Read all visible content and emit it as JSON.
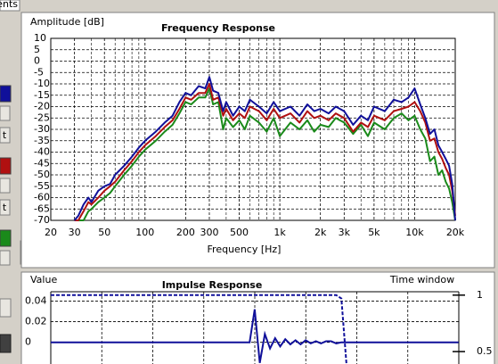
{
  "ui": {
    "tab": "ents",
    "buttons": [
      "t",
      "t",
      "t"
    ]
  },
  "chart_data": [
    {
      "type": "line",
      "title": "Frequency Response",
      "y_label": "Amplitude [dB]",
      "x_label": "Frequency [Hz]",
      "log_x": true,
      "grid": true,
      "xlim": [
        20,
        20000
      ],
      "ylim": [
        -70,
        10
      ],
      "xticks": [
        20,
        30,
        50,
        100,
        200,
        300,
        500,
        {
          "value": 1000,
          "label": "1k"
        },
        {
          "value": 2000,
          "label": "2k"
        },
        {
          "value": 3000,
          "label": "3k"
        },
        {
          "value": 5000,
          "label": "5k"
        },
        {
          "value": 10000,
          "label": "10k"
        },
        {
          "value": 20000,
          "label": "20k"
        }
      ],
      "x_minor_ticks": [
        40,
        60,
        70,
        80,
        90,
        400,
        600,
        700,
        800,
        900,
        4000,
        6000,
        7000,
        8000,
        9000
      ],
      "yticks": [
        10,
        5,
        0,
        -5,
        -10,
        -15,
        -20,
        -25,
        -30,
        -35,
        -40,
        -45,
        -50,
        -55,
        -60,
        -65,
        -70
      ],
      "x": [
        30,
        32,
        35,
        38,
        40,
        45,
        50,
        55,
        60,
        70,
        80,
        90,
        100,
        120,
        140,
        160,
        180,
        200,
        220,
        250,
        280,
        300,
        320,
        350,
        380,
        400,
        450,
        500,
        550,
        600,
        700,
        800,
        900,
        1000,
        1200,
        1400,
        1600,
        1800,
        2000,
        2300,
        2600,
        3000,
        3500,
        4000,
        4500,
        5000,
        6000,
        7000,
        8000,
        9000,
        10000,
        11000,
        12000,
        13000,
        14000,
        15000,
        16000,
        17000,
        18000,
        19000,
        20000
      ],
      "series": [
        {
          "color": "#1a8a1a",
          "values": [
            -70,
            -70,
            -70,
            -66,
            -65,
            -62,
            -60,
            -58,
            -55,
            -50,
            -46,
            -42,
            -39,
            -35,
            -31,
            -28,
            -23,
            -18,
            -19,
            -16,
            -16,
            -12,
            -19,
            -18,
            -30,
            -25,
            -29,
            -26,
            -30,
            -24,
            -27,
            -31,
            -25,
            -33,
            -27,
            -30,
            -26,
            -31,
            -28,
            -29,
            -25,
            -27,
            -32,
            -28,
            -33,
            -27,
            -30,
            -25,
            -23,
            -26,
            -24,
            -30,
            -34,
            -44,
            -42,
            -50,
            -48,
            -53,
            -56,
            -62,
            -70
          ]
        },
        {
          "color": "#b01010",
          "values": [
            -70,
            -70,
            -66,
            -62,
            -63,
            -60,
            -57,
            -55,
            -53,
            -48,
            -44,
            -40,
            -37,
            -33,
            -29,
            -26,
            -21,
            -16,
            -17,
            -14,
            -14,
            -10,
            -17,
            -16,
            -24,
            -21,
            -26,
            -23,
            -25,
            -20,
            -22,
            -26,
            -21,
            -25,
            -23,
            -27,
            -22,
            -25,
            -24,
            -26,
            -23,
            -25,
            -31,
            -27,
            -29,
            -24,
            -26,
            -22,
            -21,
            -20,
            -18,
            -22,
            -27,
            -35,
            -34,
            -40,
            -43,
            -47,
            -50,
            -57,
            -68
          ]
        },
        {
          "color": "#10109a",
          "values": [
            -70,
            -68,
            -63,
            -60,
            -62,
            -57,
            -55,
            -54,
            -50,
            -46,
            -42,
            -38,
            -35,
            -31,
            -27,
            -24,
            -18,
            -14,
            -15,
            -11,
            -12,
            -7,
            -13,
            -14,
            -22,
            -18,
            -24,
            -20,
            -22,
            -17,
            -20,
            -23,
            -18,
            -22,
            -20,
            -24,
            -19,
            -22,
            -21,
            -23,
            -20,
            -22,
            -28,
            -24,
            -26,
            -20,
            -22,
            -17,
            -18,
            -16,
            -12,
            -19,
            -25,
            -32,
            -30,
            -37,
            -40,
            -43,
            -46,
            -54,
            -70
          ]
        }
      ]
    },
    {
      "type": "line",
      "title": "Impulse Response",
      "y_label": "Value",
      "y2_label": "Time window",
      "grid": true,
      "ylim": [
        -0.021,
        0.049
      ],
      "yticks": [
        0.04,
        0.02,
        0
      ],
      "y2lim": [
        0.39,
        1.03
      ],
      "y2ticks": [
        1,
        0.5
      ],
      "series": [
        {
          "color": "#10109a",
          "values": [
            0,
            0,
            0,
            0,
            0,
            0,
            0,
            0,
            0,
            0,
            0,
            0,
            0,
            0,
            0,
            0,
            0,
            0,
            0,
            0,
            0,
            0,
            0,
            0,
            0,
            0,
            0,
            0,
            0,
            0,
            0,
            0,
            0,
            0,
            0,
            0,
            0,
            0,
            0,
            0,
            0.032,
            -0.02,
            0.008,
            -0.006,
            0.004,
            -0.004,
            0.003,
            -0.002,
            0.002,
            -0.002,
            0.002,
            -0.001,
            0.001,
            -0.001,
            0.001,
            0.001,
            -0.001,
            0,
            0,
            0,
            0,
            0,
            0,
            0,
            0,
            0,
            0,
            0,
            0,
            0,
            0,
            0,
            0,
            0,
            0,
            0,
            0,
            0,
            0,
            0,
            0
          ]
        },
        {
          "color": "#10109a",
          "axis": "y2",
          "dashed": true,
          "values": [
            1,
            1,
            1,
            1,
            1,
            1,
            1,
            1,
            1,
            1,
            1,
            1,
            1,
            1,
            1,
            1,
            1,
            1,
            1,
            1,
            1,
            1,
            1,
            1,
            1,
            1,
            1,
            1,
            1,
            1,
            1,
            1,
            1,
            1,
            1,
            1,
            1,
            1,
            1,
            1,
            1,
            1,
            1,
            1,
            1,
            1,
            1,
            1,
            1,
            1,
            1,
            1,
            1,
            1,
            1,
            1,
            1,
            0.97,
            0.39,
            null,
            null,
            null,
            null,
            null,
            null,
            null,
            null,
            null,
            null,
            null,
            null,
            null,
            null,
            null,
            null,
            null,
            null,
            null,
            null,
            null,
            null
          ]
        }
      ]
    }
  ]
}
